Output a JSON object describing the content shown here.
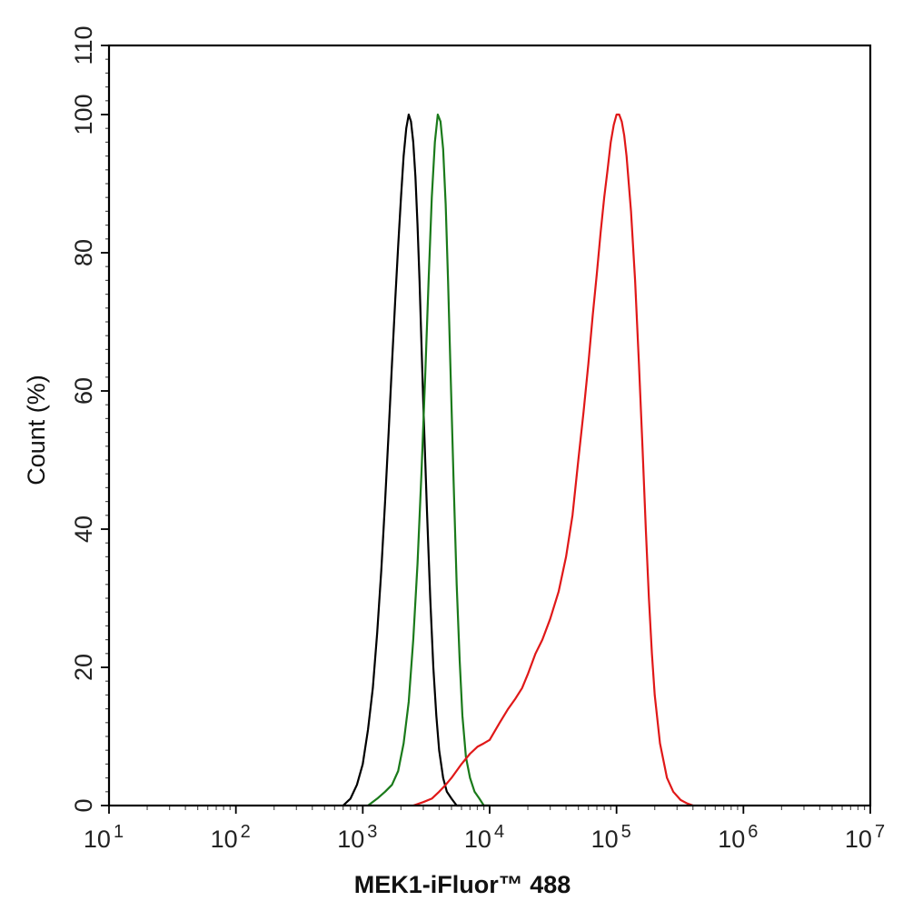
{
  "chart_data": {
    "type": "line",
    "title": "",
    "xlabel": "MEK1-iFluor™ 488",
    "ylabel": "Count  (%)",
    "x_scale": "log",
    "xlim": [
      10,
      10000000
    ],
    "ylim": [
      0,
      110
    ],
    "x_ticks": [
      {
        "base": "10",
        "exp": "1"
      },
      {
        "base": "10",
        "exp": "2"
      },
      {
        "base": "10",
        "exp": "3"
      },
      {
        "base": "10",
        "exp": "4"
      },
      {
        "base": "10",
        "exp": "5"
      },
      {
        "base": "10",
        "exp": "6"
      },
      {
        "base": "10",
        "exp": "7"
      }
    ],
    "y_ticks": [
      "0",
      "20",
      "40",
      "60",
      "80",
      "100",
      "110"
    ],
    "grid": false,
    "legend": "none",
    "series": [
      {
        "color": "#000000",
        "x": [
          700,
          800,
          900,
          1000,
          1100,
          1200,
          1300,
          1400,
          1500,
          1600,
          1700,
          1800,
          1900,
          2000,
          2100,
          2200,
          2300,
          2400,
          2500,
          2600,
          2700,
          2800,
          2900,
          3000,
          3200,
          3400,
          3600,
          3800,
          4000,
          4300,
          4600,
          5000,
          5500,
          6000
        ],
        "y": [
          0,
          1,
          3,
          6,
          11,
          17,
          25,
          34,
          44,
          54,
          64,
          73,
          81,
          88,
          94,
          98,
          100,
          99,
          96,
          91,
          84,
          76,
          67,
          58,
          43,
          30,
          20,
          13,
          8,
          4,
          2,
          1,
          0,
          0
        ]
      },
      {
        "color": "#1a7a1a",
        "x": [
          1100,
          1300,
          1500,
          1700,
          1900,
          2100,
          2300,
          2500,
          2700,
          2900,
          3100,
          3300,
          3500,
          3700,
          3900,
          4100,
          4300,
          4500,
          4700,
          4900,
          5200,
          5500,
          5800,
          6100,
          6500,
          7000,
          7600,
          8300,
          9000,
          10000
        ],
        "y": [
          0,
          1,
          2,
          3,
          5,
          9,
          15,
          24,
          35,
          48,
          62,
          76,
          88,
          96,
          100,
          99,
          95,
          87,
          76,
          64,
          47,
          32,
          21,
          13,
          7,
          4,
          2,
          1,
          0,
          0
        ]
      },
      {
        "color": "#e01818",
        "x": [
          2500,
          3000,
          3500,
          4000,
          4500,
          5000,
          6000,
          7000,
          8000,
          9000,
          10000,
          12000,
          14000,
          16000,
          18000,
          20000,
          23000,
          26000,
          30000,
          35000,
          40000,
          45000,
          50000,
          55000,
          60000,
          65000,
          70000,
          75000,
          80000,
          85000,
          90000,
          95000,
          100000,
          105000,
          110000,
          115000,
          120000,
          130000,
          140000,
          150000,
          160000,
          170000,
          180000,
          190000,
          200000,
          220000,
          250000,
          280000,
          320000,
          360000,
          400000
        ],
        "y": [
          0,
          0.5,
          1,
          2,
          3,
          4,
          6,
          7.5,
          8.5,
          9,
          9.5,
          12,
          14,
          15.5,
          17,
          19,
          22,
          24,
          27,
          31,
          36,
          42,
          50,
          57,
          64,
          71,
          77,
          83,
          88,
          92,
          96,
          98.5,
          100,
          100,
          99,
          97,
          94,
          86,
          76,
          64,
          52,
          40,
          30,
          22,
          16,
          9,
          4,
          2,
          0.8,
          0.3,
          0
        ]
      }
    ]
  }
}
